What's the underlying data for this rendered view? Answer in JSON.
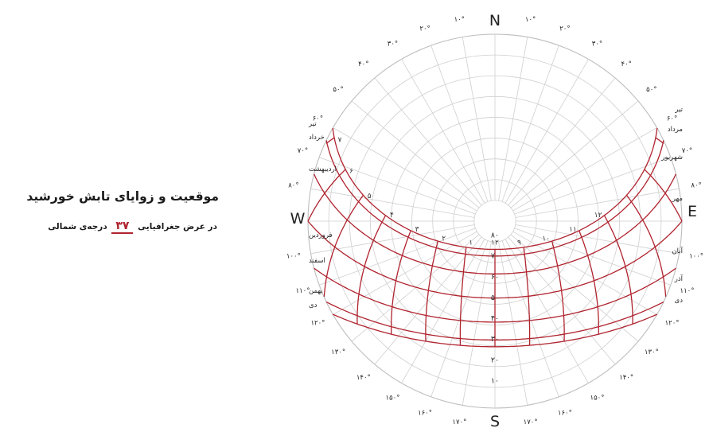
{
  "title": "موقعیت و زوایای تابش خورشید",
  "subtitle": {
    "prefix": "در عرض جغرافیایی",
    "latitude": "۳۷",
    "suffix": "درجه‌ی شمالی"
  },
  "compass": {
    "north": "N",
    "south": "S",
    "east": "E",
    "west": "W"
  },
  "azimuth_labels": [
    "۱۰°",
    "۲۰°",
    "۳۰°",
    "۴۰°",
    "۵۰°",
    "۶۰°",
    "۷۰°",
    "۸۰°",
    "۱۰۰°",
    "۱۱۰°",
    "۱۲۰°",
    "۱۳۰°",
    "۱۴۰°",
    "۱۵۰°",
    "۱۶۰°",
    "۱۷۰°"
  ],
  "altitude_labels": [
    "۱۰",
    "۲۰",
    "۳۰",
    "۴۰",
    "۵۰",
    "۶۰",
    "۷۰",
    "۸۰"
  ],
  "hour_labels": [
    "۱",
    "۲",
    "۳",
    "۴",
    "۵",
    "۶",
    "۷",
    "۸",
    "۹",
    "۱۰",
    "۱۱",
    "۱۲"
  ],
  "months_east": [
    "تیر",
    "مرداد",
    "شهریور",
    "مهر",
    "آبان",
    "آذر",
    "دی"
  ],
  "months_west": [
    "تیر",
    "خرداد",
    "اردیبهشت",
    "فروردین",
    "اسفند",
    "بهمن",
    "دی"
  ],
  "chart_data": {
    "type": "sun-path",
    "latitude_deg": 37,
    "declinations": [
      23.44,
      20.2,
      11.6,
      0,
      -11.6,
      -20.2,
      -23.44
    ],
    "hour_labels_at_declination": 23.44,
    "colors": {
      "grid": "#cfcfcf",
      "sun_path": "#b0232e",
      "text": "#222222"
    }
  }
}
